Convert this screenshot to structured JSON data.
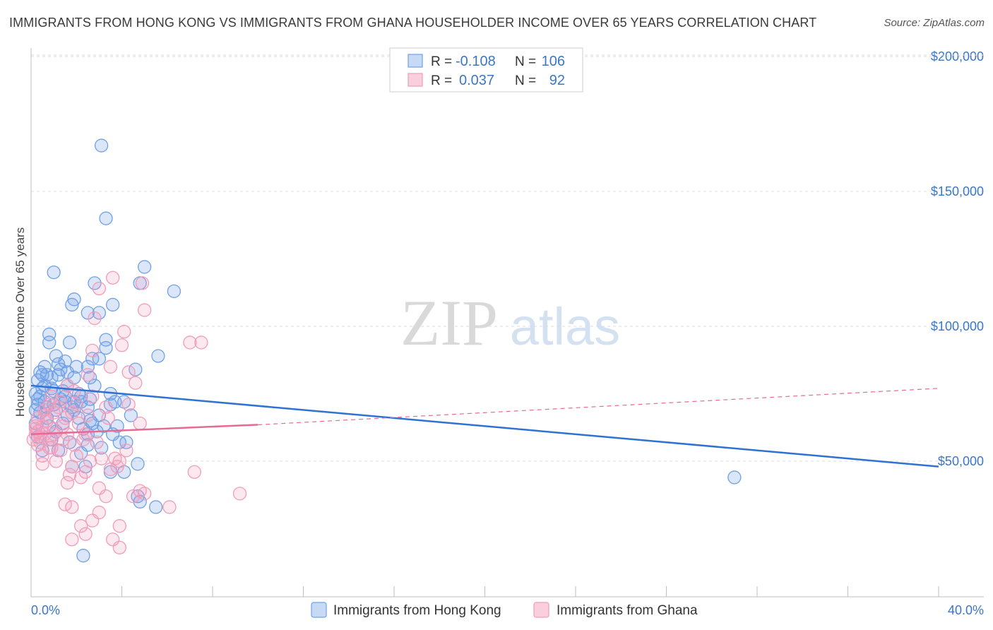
{
  "title": "IMMIGRANTS FROM HONG KONG VS IMMIGRANTS FROM GHANA HOUSEHOLDER INCOME OVER 65 YEARS CORRELATION CHART",
  "source": "Source: ZipAtlas.com",
  "watermark": {
    "zip": "ZIP",
    "atlas": "atlas"
  },
  "chart_data": {
    "type": "scatter",
    "xlabel": "",
    "ylabel": "Householder Income Over 65 years",
    "xlim": [
      0,
      40
    ],
    "ylim": [
      0,
      210000
    ],
    "x_tick_labels": [
      "0.0%",
      "40.0%"
    ],
    "y_ticks": [
      50000,
      100000,
      150000,
      200000
    ],
    "y_tick_labels": [
      "$50,000",
      "$100,000",
      "$150,000",
      "$200,000"
    ],
    "grid": true,
    "legend_top": {
      "rows": [
        {
          "r_label": "R = ",
          "r_value": "-0.108",
          "n_label": "N = ",
          "n_value": "106",
          "color": "#6fa0e6"
        },
        {
          "r_label": "R = ",
          "r_value": "0.037",
          "n_label": "N = ",
          "n_value": "92",
          "color": "#f19cb9"
        }
      ]
    },
    "series": [
      {
        "name": "Immigrants from Hong Kong",
        "color": "#6fa0e6",
        "line_color": "#2f72d2",
        "trend": {
          "x0": 0.0,
          "y0": 78000,
          "x1": 40.0,
          "y1": 48000,
          "dashed_from": null
        },
        "points": [
          [
            3.1,
            167000
          ],
          [
            3.3,
            140000
          ],
          [
            1.0,
            120000
          ],
          [
            5.0,
            122000
          ],
          [
            6.3,
            113000
          ],
          [
            4.8,
            116000
          ],
          [
            2.8,
            116000
          ],
          [
            1.9,
            110000
          ],
          [
            1.8,
            108000
          ],
          [
            3.6,
            108000
          ],
          [
            2.5,
            105000
          ],
          [
            3.0,
            105000
          ],
          [
            0.8,
            97000
          ],
          [
            0.8,
            94000
          ],
          [
            1.7,
            94000
          ],
          [
            3.3,
            95000
          ],
          [
            3.3,
            92000
          ],
          [
            1.1,
            89000
          ],
          [
            5.6,
            89000
          ],
          [
            2.7,
            88000
          ],
          [
            3.0,
            88000
          ],
          [
            0.6,
            85000
          ],
          [
            1.5,
            87000
          ],
          [
            1.2,
            86000
          ],
          [
            2.0,
            85000
          ],
          [
            2.5,
            85000
          ],
          [
            4.6,
            84000
          ],
          [
            0.4,
            83000
          ],
          [
            0.7,
            82000
          ],
          [
            1.2,
            82000
          ],
          [
            1.6,
            83000
          ],
          [
            0.9,
            81000
          ],
          [
            1.9,
            81000
          ],
          [
            2.6,
            81000
          ],
          [
            0.3,
            80000
          ],
          [
            0.6,
            78000
          ],
          [
            0.5,
            77000
          ],
          [
            0.9,
            77000
          ],
          [
            1.4,
            76000
          ],
          [
            0.2,
            75000
          ],
          [
            0.4,
            74000
          ],
          [
            1.3,
            73000
          ],
          [
            1.9,
            72000
          ],
          [
            2.2,
            74000
          ],
          [
            3.5,
            75000
          ],
          [
            0.3,
            71000
          ],
          [
            0.6,
            72000
          ],
          [
            1.0,
            71000
          ],
          [
            1.5,
            72000
          ],
          [
            2.6,
            73000
          ],
          [
            3.7,
            72000
          ],
          [
            0.2,
            69000
          ],
          [
            0.7,
            70000
          ],
          [
            1.1,
            69000
          ],
          [
            1.8,
            70000
          ],
          [
            2.5,
            70000
          ],
          [
            3.5,
            71000
          ],
          [
            4.1,
            72000
          ],
          [
            4.4,
            67000
          ],
          [
            1.6,
            67000
          ],
          [
            2.1,
            66000
          ],
          [
            2.6,
            65000
          ],
          [
            1.4,
            64000
          ],
          [
            2.3,
            62000
          ],
          [
            2.9,
            61000
          ],
          [
            3.2,
            63000
          ],
          [
            3.6,
            60000
          ],
          [
            0.3,
            59000
          ],
          [
            0.9,
            58000
          ],
          [
            1.7,
            57000
          ],
          [
            2.5,
            56000
          ],
          [
            3.1,
            55000
          ],
          [
            0.5,
            54000
          ],
          [
            1.2,
            54000
          ],
          [
            2.2,
            53000
          ],
          [
            4.2,
            57000
          ],
          [
            1.8,
            48000
          ],
          [
            2.4,
            48000
          ],
          [
            4.7,
            49000
          ],
          [
            3.5,
            46000
          ],
          [
            4.1,
            46000
          ],
          [
            2.5,
            60000
          ],
          [
            4.7,
            37000
          ],
          [
            4.8,
            35000
          ],
          [
            5.5,
            33000
          ],
          [
            2.3,
            15000
          ],
          [
            0.4,
            68000
          ],
          [
            0.8,
            63000
          ],
          [
            1.6,
            78000
          ],
          [
            2.1,
            75000
          ],
          [
            3.9,
            57000
          ],
          [
            0.2,
            64000
          ],
          [
            1.0,
            76000
          ],
          [
            1.3,
            84000
          ],
          [
            2.8,
            78000
          ],
          [
            0.5,
            82000
          ],
          [
            31.0,
            44000
          ],
          [
            1.1,
            61000
          ],
          [
            1.9,
            69000
          ],
          [
            3.0,
            67000
          ],
          [
            0.7,
            66000
          ],
          [
            2.2,
            72000
          ],
          [
            0.3,
            73000
          ],
          [
            1.5,
            74000
          ],
          [
            2.7,
            64000
          ],
          [
            3.8,
            63000
          ]
        ]
      },
      {
        "name": "Immigrants from Ghana",
        "color": "#f19cb9",
        "line_color": "#e66a92",
        "trend": {
          "x0": 0.0,
          "y0": 60000,
          "x1": 10.0,
          "y1": 63500,
          "x2": 40.0,
          "y2": 77000
        },
        "points": [
          [
            3.6,
            118000
          ],
          [
            3.0,
            114000
          ],
          [
            4.9,
            116000
          ],
          [
            5.0,
            106000
          ],
          [
            2.8,
            103000
          ],
          [
            4.1,
            98000
          ],
          [
            7.0,
            94000
          ],
          [
            7.5,
            94000
          ],
          [
            4.0,
            93000
          ],
          [
            2.7,
            91000
          ],
          [
            3.5,
            85000
          ],
          [
            4.3,
            83000
          ],
          [
            2.5,
            82000
          ],
          [
            4.6,
            79000
          ],
          [
            1.6,
            78000
          ],
          [
            2.7,
            74000
          ],
          [
            0.8,
            71000
          ],
          [
            1.3,
            72000
          ],
          [
            2.0,
            71000
          ],
          [
            0.6,
            69000
          ],
          [
            3.3,
            70000
          ],
          [
            4.3,
            71000
          ],
          [
            1.0,
            68000
          ],
          [
            1.8,
            68000
          ],
          [
            0.3,
            66000
          ],
          [
            0.7,
            65000
          ],
          [
            1.5,
            66000
          ],
          [
            3.4,
            66000
          ],
          [
            0.2,
            63000
          ],
          [
            0.5,
            63000
          ],
          [
            1.0,
            62000
          ],
          [
            4.8,
            64000
          ],
          [
            0.2,
            60000
          ],
          [
            0.6,
            60000
          ],
          [
            1.6,
            60000
          ],
          [
            2.4,
            60000
          ],
          [
            0.1,
            58000
          ],
          [
            0.8,
            58000
          ],
          [
            1.4,
            58000
          ],
          [
            2.3,
            58000
          ],
          [
            0.3,
            56000
          ],
          [
            0.9,
            55000
          ],
          [
            1.9,
            56000
          ],
          [
            4.2,
            54000
          ],
          [
            0.5,
            52000
          ],
          [
            1.1,
            50000
          ],
          [
            2.6,
            50000
          ],
          [
            3.7,
            51000
          ],
          [
            3.9,
            50000
          ],
          [
            0.5,
            49000
          ],
          [
            1.8,
            48000
          ],
          [
            3.5,
            47000
          ],
          [
            3.8,
            48000
          ],
          [
            2.4,
            46000
          ],
          [
            7.2,
            46000
          ],
          [
            1.7,
            45000
          ],
          [
            2.2,
            44000
          ],
          [
            1.6,
            42000
          ],
          [
            3.0,
            40000
          ],
          [
            4.8,
            39000
          ],
          [
            9.2,
            38000
          ],
          [
            3.3,
            37000
          ],
          [
            4.5,
            37000
          ],
          [
            5.0,
            38000
          ],
          [
            1.5,
            34000
          ],
          [
            1.8,
            33000
          ],
          [
            6.1,
            33000
          ],
          [
            3.0,
            31000
          ],
          [
            2.7,
            28000
          ],
          [
            2.2,
            26000
          ],
          [
            3.9,
            26000
          ],
          [
            2.4,
            23000
          ],
          [
            1.8,
            21000
          ],
          [
            3.6,
            21000
          ],
          [
            3.9,
            18000
          ],
          [
            0.2,
            62000
          ],
          [
            0.9,
            74000
          ],
          [
            1.2,
            70000
          ],
          [
            2.1,
            64000
          ],
          [
            2.9,
            57000
          ],
          [
            0.4,
            57000
          ],
          [
            1.3,
            54000
          ],
          [
            2.0,
            52000
          ],
          [
            1.0,
            60000
          ],
          [
            0.6,
            67000
          ],
          [
            1.9,
            76000
          ],
          [
            0.3,
            61000
          ],
          [
            1.4,
            63000
          ],
          [
            2.5,
            67000
          ],
          [
            0.8,
            55000
          ],
          [
            3.1,
            51000
          ],
          [
            0.4,
            59000
          ]
        ]
      }
    ]
  }
}
